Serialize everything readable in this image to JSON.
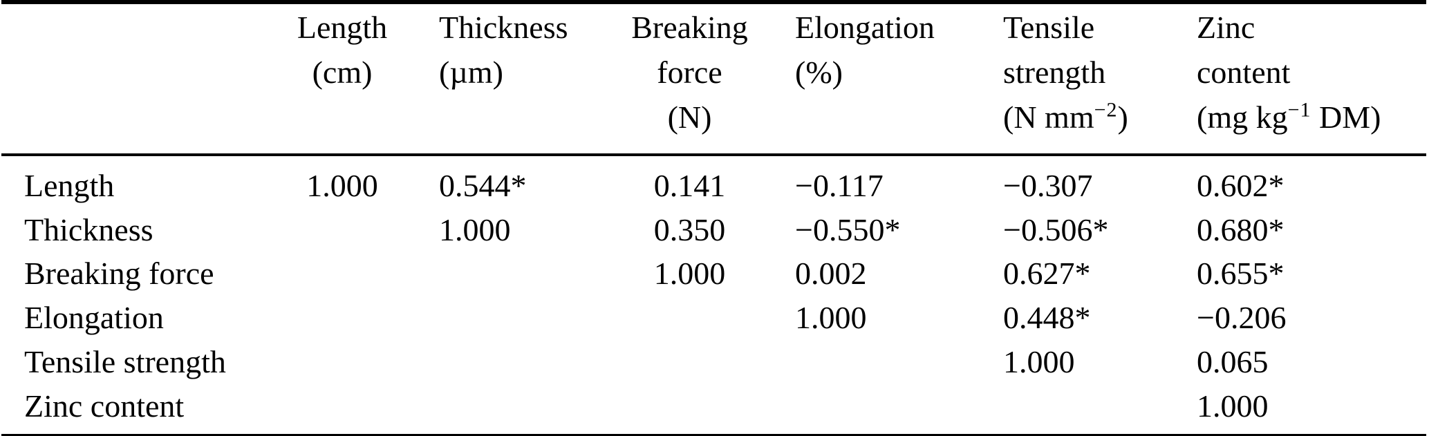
{
  "table": {
    "header": {
      "length": {
        "line1": "Length",
        "line2": "(cm)"
      },
      "thickness": {
        "line1": "Thickness",
        "line2": "(µm)"
      },
      "breaking_force": {
        "line1": "Breaking",
        "line2": "force",
        "line3": "(N)"
      },
      "elongation": {
        "line1": "Elongation",
        "line2": "(%)"
      },
      "tensile_strength": {
        "line1": "Tensile",
        "line2": "strength",
        "line3_pre": "(N mm",
        "line3_sup": "−2",
        "line3_post": ")"
      },
      "zinc_content": {
        "line1": "Zinc",
        "line2": "content",
        "line3_pre": "(mg kg",
        "line3_sup": "−1",
        "line3_post": " DM)"
      }
    },
    "rows": [
      {
        "label": "Length",
        "length": "1.000",
        "thickness": "0.544*",
        "breaking_force": "0.141",
        "elongation": "−0.117",
        "tensile_strength": "−0.307",
        "zinc_content": "0.602*"
      },
      {
        "label": "Thickness",
        "length": "",
        "thickness": "1.000",
        "breaking_force": "0.350",
        "elongation": "−0.550*",
        "tensile_strength": "−0.506*",
        "zinc_content": "0.680*"
      },
      {
        "label": "Breaking force",
        "length": "",
        "thickness": "",
        "breaking_force": "1.000",
        "elongation": "0.002",
        "tensile_strength": "0.627*",
        "zinc_content": "0.655*"
      },
      {
        "label": "Elongation",
        "length": "",
        "thickness": "",
        "breaking_force": "",
        "elongation": "1.000",
        "tensile_strength": "0.448*",
        "zinc_content": "−0.206"
      },
      {
        "label": "Tensile strength",
        "length": "",
        "thickness": "",
        "breaking_force": "",
        "elongation": "",
        "tensile_strength": "1.000",
        "zinc_content": "0.065"
      },
      {
        "label": "Zinc content",
        "length": "",
        "thickness": "",
        "breaking_force": "",
        "elongation": "",
        "tensile_strength": "",
        "zinc_content": "1.000"
      }
    ]
  }
}
